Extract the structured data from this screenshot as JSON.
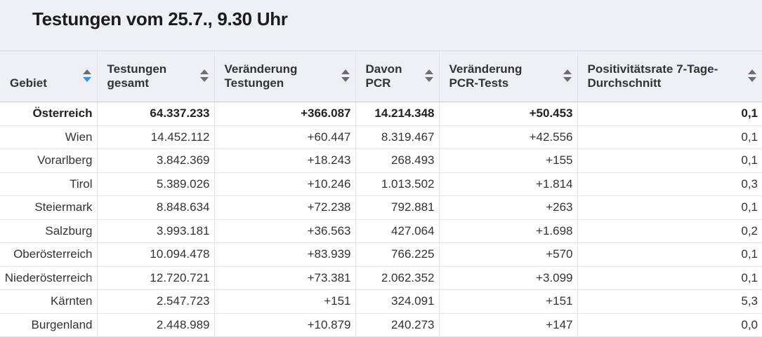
{
  "title": "Testungen vom 25.7., 9.30 Uhr",
  "columns": [
    {
      "label": "Gebiet",
      "sort": "active"
    },
    {
      "label": "Testungen gesamt",
      "sort": "none"
    },
    {
      "label": "Veränderung Testungen",
      "sort": "none"
    },
    {
      "label": "Davon PCR",
      "sort": "none"
    },
    {
      "label": "Veränderung PCR-Tests",
      "sort": "none"
    },
    {
      "label": "Positivitätsrate 7-Tage-Durchschnitt",
      "sort": "none"
    }
  ],
  "rows": [
    {
      "cells": [
        "Österreich",
        "64.337.233",
        "+366.087",
        "14.214.348",
        "+50.453",
        "0,1"
      ],
      "total": true
    },
    {
      "cells": [
        "Wien",
        "14.452.112",
        "+60.447",
        "8.319.467",
        "+42.556",
        "0,1"
      ]
    },
    {
      "cells": [
        "Vorarlberg",
        "3.842.369",
        "+18.243",
        "268.493",
        "+155",
        "0,1"
      ]
    },
    {
      "cells": [
        "Tirol",
        "5.389.026",
        "+10.246",
        "1.013.502",
        "+1.814",
        "0,3"
      ]
    },
    {
      "cells": [
        "Steiermark",
        "8.848.634",
        "+72.238",
        "792.881",
        "+263",
        "0,1"
      ]
    },
    {
      "cells": [
        "Salzburg",
        "3.993.181",
        "+36.563",
        "427.064",
        "+1.698",
        "0,2"
      ]
    },
    {
      "cells": [
        "Oberösterreich",
        "10.094.478",
        "+83.939",
        "766.225",
        "+570",
        "0,1"
      ]
    },
    {
      "cells": [
        "Niederösterreich",
        "12.720.721",
        "+73.381",
        "2.062.352",
        "+3.099",
        "0,1"
      ]
    },
    {
      "cells": [
        "Kärnten",
        "2.547.723",
        "+151",
        "324.091",
        "+151",
        "5,3"
      ]
    },
    {
      "cells": [
        "Burgenland",
        "2.448.989",
        "+10.879",
        "240.273",
        "+147",
        "0,0"
      ]
    }
  ],
  "colors": {
    "sort_active": "#3b8ee8",
    "sort_idle": "#6b6e74",
    "header_bg": "#eef0f5"
  }
}
